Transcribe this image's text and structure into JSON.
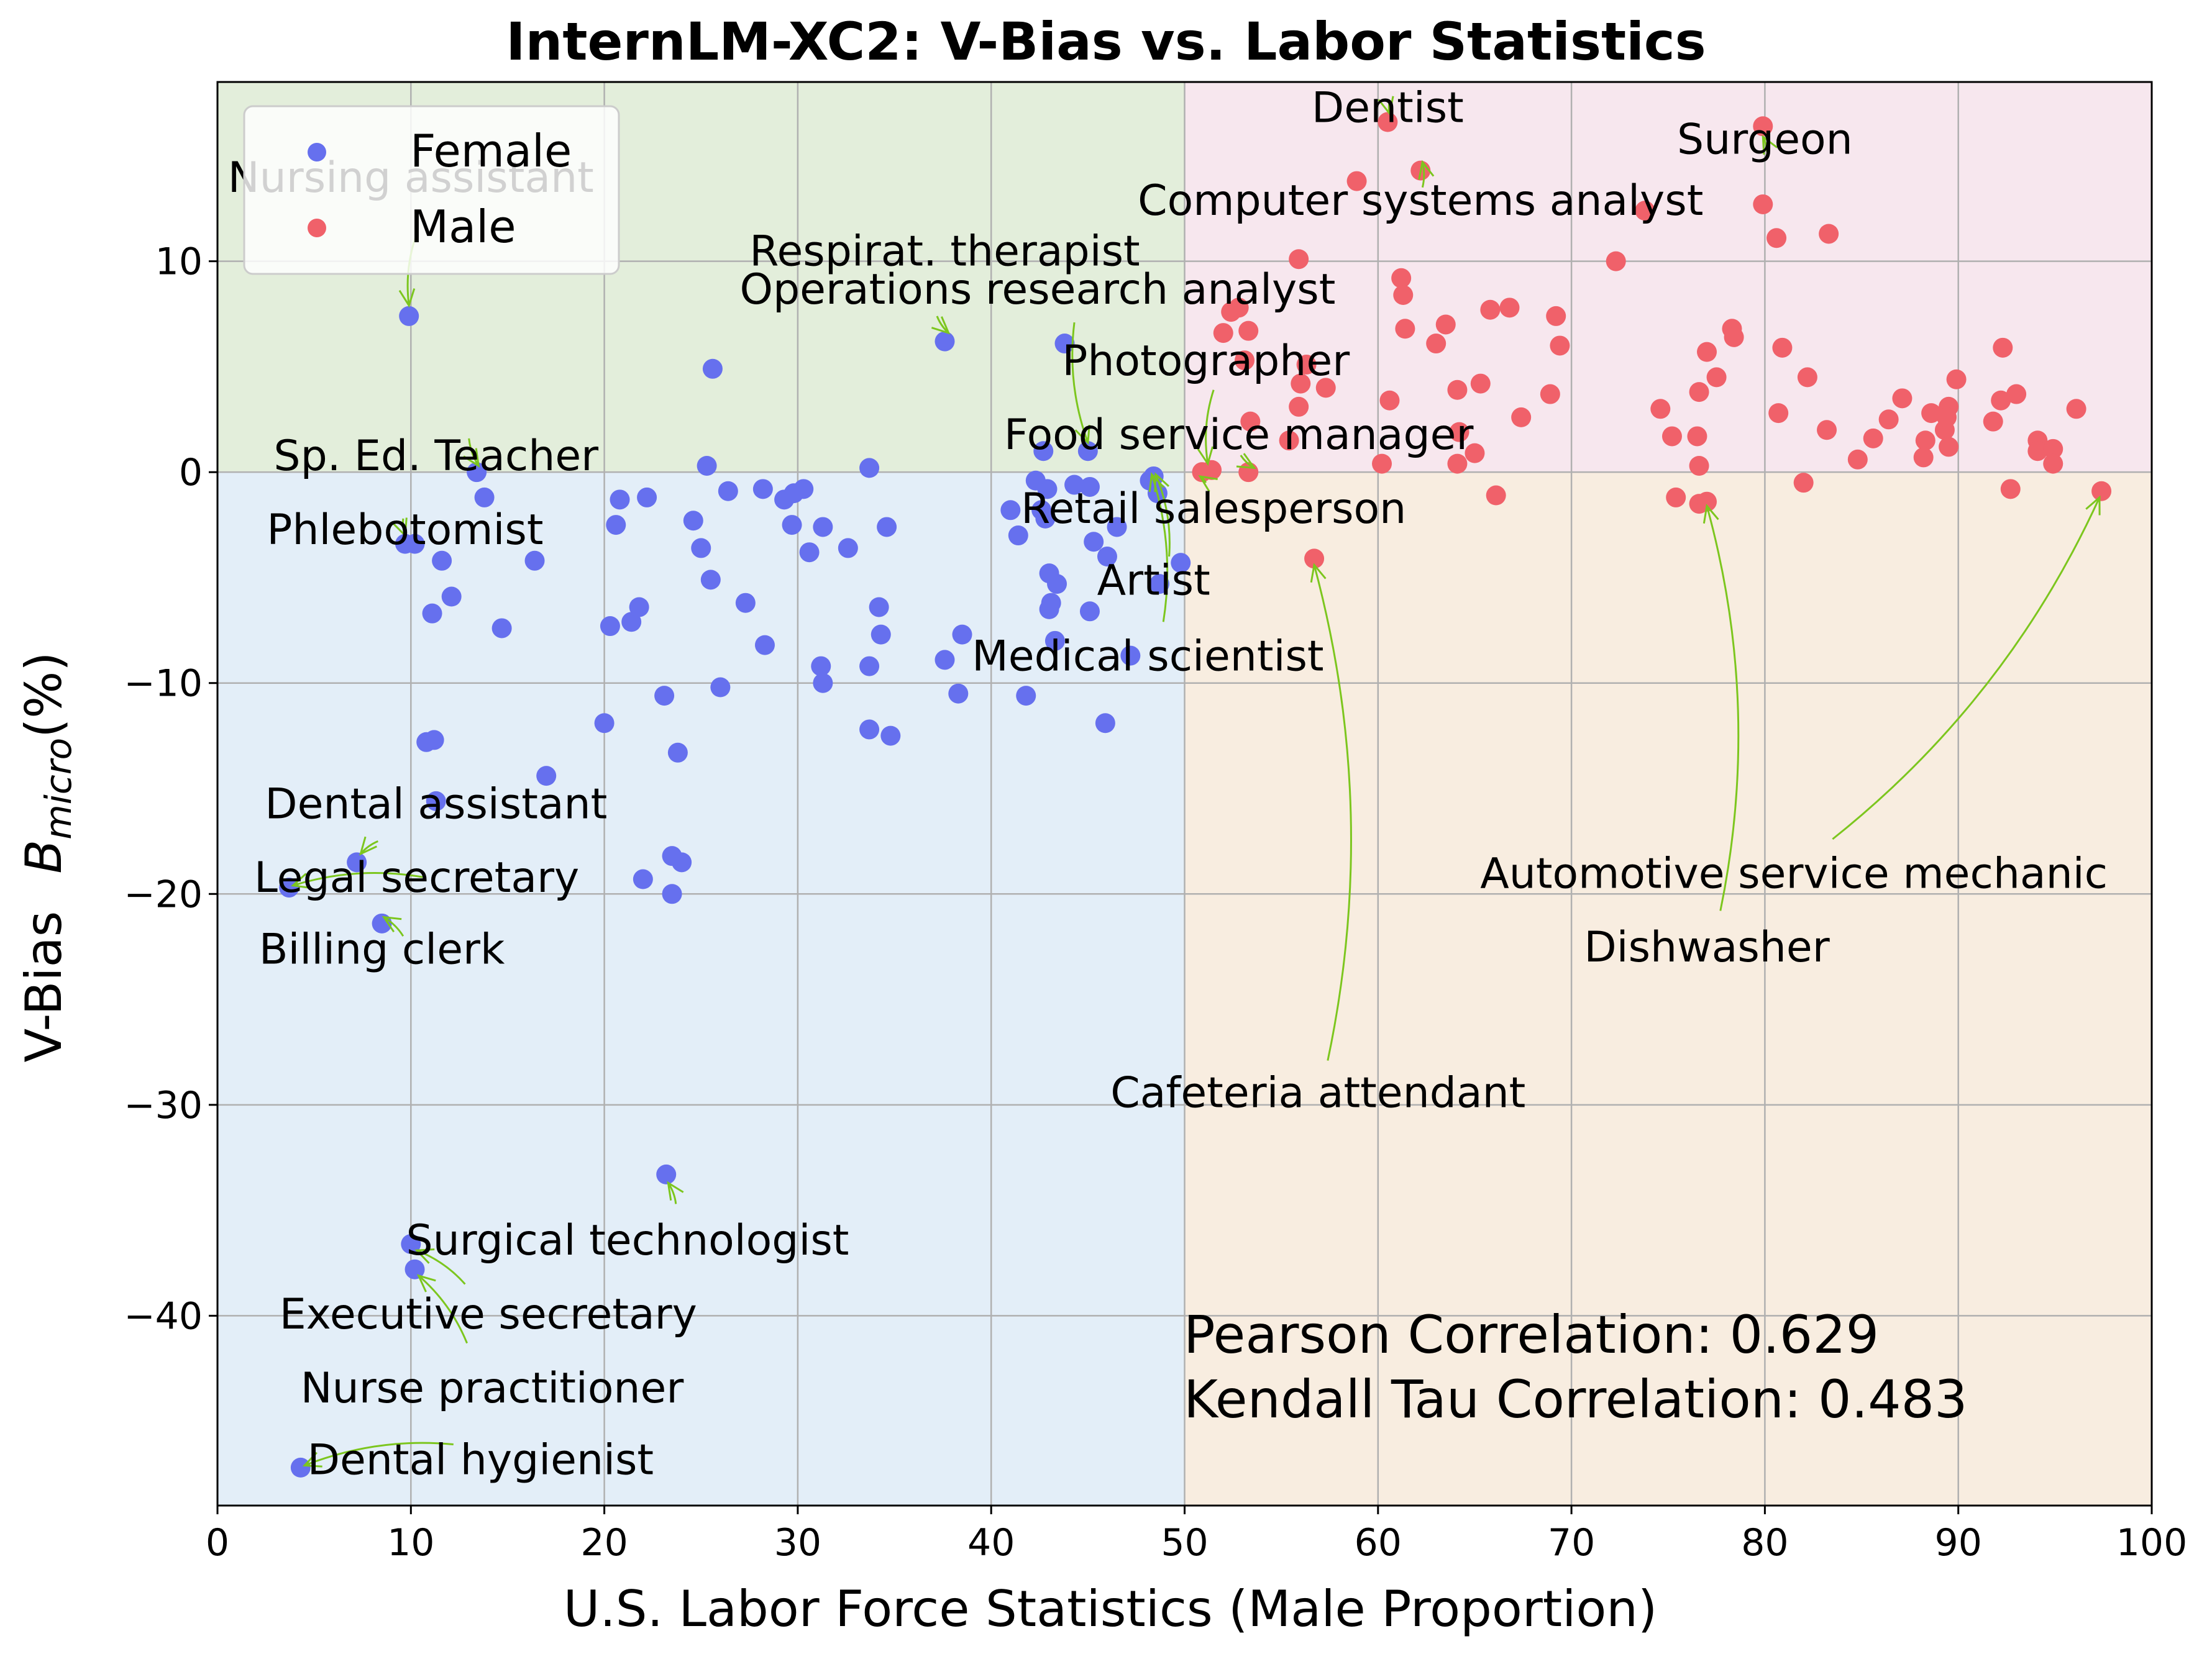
{
  "chart_data": {
    "type": "scatter",
    "title": "InternLM-XC2: V-Bias vs. Labor Statistics",
    "xlabel": "U.S. Labor Force Statistics (Male Proportion)",
    "ylabel": "V-Bias  B_micro(%)",
    "ylabel_main": "V-Bias",
    "ylabel_symbol": "B",
    "ylabel_subscript": "micro",
    "ylabel_unit": "(%)",
    "xlim": [
      0,
      100
    ],
    "ylim": [
      -49,
      18.5
    ],
    "xticks": [
      0,
      10,
      20,
      30,
      40,
      50,
      60,
      70,
      80,
      90,
      100
    ],
    "yticks": [
      -40,
      -30,
      -20,
      -10,
      0,
      10
    ],
    "ytick_labels": [
      "−40",
      "−30",
      "−20",
      "−10",
      "0",
      "10"
    ],
    "grid": true,
    "legend_position": "top-left",
    "region_colors": {
      "top_left": "#e3eedb",
      "top_right": "#f7e7ee",
      "bottom_left": "#e3eef8",
      "bottom_right": "#f8ede0"
    },
    "annotation_color": "#7cc61e",
    "series": [
      {
        "name": "Female",
        "color": "#6670ee",
        "points": [
          [
            9.9,
            7.4
          ],
          [
            25.6,
            4.9
          ],
          [
            37.6,
            6.2
          ],
          [
            43.8,
            6.1
          ],
          [
            13.4,
            0.0
          ],
          [
            13.8,
            -1.2
          ],
          [
            9.7,
            -3.4
          ],
          [
            10.2,
            -3.4
          ],
          [
            11.6,
            -4.2
          ],
          [
            11.1,
            -6.7
          ],
          [
            12.1,
            -5.9
          ],
          [
            14.7,
            -7.4
          ],
          [
            16.4,
            -4.2
          ],
          [
            20.6,
            -2.5
          ],
          [
            20.8,
            -1.3
          ],
          [
            22.2,
            -1.2
          ],
          [
            20.3,
            -7.3
          ],
          [
            21.4,
            -7.1
          ],
          [
            21.8,
            -6.4
          ],
          [
            25.3,
            0.3
          ],
          [
            24.6,
            -2.3
          ],
          [
            25.0,
            -3.6
          ],
          [
            25.5,
            -5.1
          ],
          [
            26.4,
            -0.9
          ],
          [
            27.3,
            -6.2
          ],
          [
            28.2,
            -0.8
          ],
          [
            28.3,
            -8.2
          ],
          [
            29.3,
            -1.3
          ],
          [
            29.8,
            -1.0
          ],
          [
            29.7,
            -2.5
          ],
          [
            30.3,
            -0.8
          ],
          [
            30.6,
            -3.8
          ],
          [
            31.3,
            -2.6
          ],
          [
            31.2,
            -9.2
          ],
          [
            31.3,
            -10.0
          ],
          [
            32.6,
            -3.6
          ],
          [
            33.7,
            0.2
          ],
          [
            34.2,
            -6.4
          ],
          [
            34.6,
            -2.6
          ],
          [
            34.3,
            -7.7
          ],
          [
            33.7,
            -9.2
          ],
          [
            33.7,
            -12.2
          ],
          [
            34.8,
            -12.5
          ],
          [
            23.1,
            -10.6
          ],
          [
            26.0,
            -10.2
          ],
          [
            20.0,
            -11.9
          ],
          [
            23.8,
            -13.3
          ],
          [
            10.8,
            -12.8
          ],
          [
            11.2,
            -12.7
          ],
          [
            11.3,
            -15.6
          ],
          [
            17.0,
            -14.4
          ],
          [
            22.0,
            -19.3
          ],
          [
            23.5,
            -18.2
          ],
          [
            24.0,
            -18.5
          ],
          [
            23.5,
            -20.0
          ],
          [
            7.2,
            -18.5
          ],
          [
            3.7,
            -19.7
          ],
          [
            8.5,
            -21.4
          ],
          [
            23.2,
            -33.3
          ],
          [
            10.0,
            -36.6
          ],
          [
            10.2,
            -37.8
          ],
          [
            4.3,
            -47.2
          ],
          [
            37.6,
            -8.9
          ],
          [
            38.3,
            -10.5
          ],
          [
            38.5,
            -7.7
          ],
          [
            41.4,
            -3.0
          ],
          [
            41.8,
            -10.6
          ],
          [
            41.0,
            -1.8
          ],
          [
            42.3,
            -0.4
          ],
          [
            42.7,
            1.0
          ],
          [
            42.9,
            -0.8
          ],
          [
            42.6,
            -1.8
          ],
          [
            42.8,
            -2.2
          ],
          [
            43.0,
            -4.8
          ],
          [
            43.4,
            -5.3
          ],
          [
            43.1,
            -6.2
          ],
          [
            43.0,
            -6.5
          ],
          [
            43.3,
            -8.0
          ],
          [
            44.3,
            -0.6
          ],
          [
            45.1,
            -0.7
          ],
          [
            45.0,
            1.0
          ],
          [
            45.3,
            -3.3
          ],
          [
            45.1,
            -6.6
          ],
          [
            46.0,
            -4.0
          ],
          [
            46.5,
            -2.6
          ],
          [
            45.9,
            -11.9
          ],
          [
            47.2,
            -8.7
          ],
          [
            48.2,
            -0.4
          ],
          [
            48.4,
            -0.2
          ],
          [
            48.6,
            -1.0
          ],
          [
            48.7,
            -5.3
          ],
          [
            49.8,
            -4.3
          ]
        ]
      },
      {
        "name": "Male",
        "color": "#f0616a",
        "points": [
          [
            60.5,
            16.6
          ],
          [
            62.2,
            14.3
          ],
          [
            58.9,
            13.8
          ],
          [
            73.8,
            12.4
          ],
          [
            55.9,
            10.1
          ],
          [
            72.3,
            10.0
          ],
          [
            79.9,
            16.4
          ],
          [
            79.9,
            12.7
          ],
          [
            80.6,
            11.1
          ],
          [
            83.3,
            11.3
          ],
          [
            61.2,
            9.2
          ],
          [
            61.3,
            8.4
          ],
          [
            61.4,
            6.8
          ],
          [
            63.0,
            6.1
          ],
          [
            63.5,
            7.0
          ],
          [
            65.8,
            7.7
          ],
          [
            66.8,
            7.8
          ],
          [
            69.2,
            7.4
          ],
          [
            69.4,
            6.0
          ],
          [
            68.9,
            3.7
          ],
          [
            65.3,
            4.2
          ],
          [
            64.1,
            3.9
          ],
          [
            64.2,
            1.9
          ],
          [
            64.1,
            0.4
          ],
          [
            65.0,
            0.9
          ],
          [
            66.1,
            -1.1
          ],
          [
            67.4,
            2.6
          ],
          [
            52.4,
            7.6
          ],
          [
            52.8,
            7.8
          ],
          [
            52.0,
            6.6
          ],
          [
            53.3,
            6.7
          ],
          [
            53.1,
            5.3
          ],
          [
            55.9,
            3.1
          ],
          [
            56.0,
            4.2
          ],
          [
            56.3,
            5.1
          ],
          [
            57.3,
            4.0
          ],
          [
            53.4,
            2.4
          ],
          [
            55.4,
            1.5
          ],
          [
            60.6,
            3.4
          ],
          [
            60.2,
            0.4
          ],
          [
            51.4,
            0.1
          ],
          [
            50.9,
            0.0
          ],
          [
            53.3,
            0.0
          ],
          [
            56.7,
            -4.1
          ],
          [
            77.0,
            5.7
          ],
          [
            77.5,
            4.5
          ],
          [
            76.6,
            3.8
          ],
          [
            78.3,
            6.8
          ],
          [
            78.4,
            6.4
          ],
          [
            80.9,
            5.9
          ],
          [
            82.2,
            4.5
          ],
          [
            80.7,
            2.8
          ],
          [
            74.6,
            3.0
          ],
          [
            75.2,
            1.7
          ],
          [
            76.5,
            1.7
          ],
          [
            76.6,
            0.3
          ],
          [
            75.4,
            -1.2
          ],
          [
            76.6,
            -1.5
          ],
          [
            77.0,
            -1.4
          ],
          [
            82.0,
            -0.5
          ],
          [
            83.2,
            2.0
          ],
          [
            84.8,
            0.6
          ],
          [
            85.6,
            1.6
          ],
          [
            86.4,
            2.5
          ],
          [
            87.1,
            3.5
          ],
          [
            88.2,
            0.7
          ],
          [
            88.3,
            1.5
          ],
          [
            88.6,
            2.8
          ],
          [
            89.3,
            2.0
          ],
          [
            89.5,
            3.1
          ],
          [
            89.4,
            2.6
          ],
          [
            89.5,
            1.2
          ],
          [
            89.9,
            4.4
          ],
          [
            91.8,
            2.4
          ],
          [
            92.2,
            3.4
          ],
          [
            92.3,
            5.9
          ],
          [
            92.7,
            -0.8
          ],
          [
            93.0,
            3.7
          ],
          [
            94.1,
            1.5
          ],
          [
            94.1,
            1.0
          ],
          [
            94.9,
            1.1
          ],
          [
            94.9,
            0.4
          ],
          [
            96.1,
            3.0
          ],
          [
            97.4,
            -0.9
          ]
        ]
      }
    ],
    "annotations": [
      {
        "text": "Nursing assistant",
        "x": 9.9,
        "y": 7.4,
        "tx": 10.0,
        "ty": 14.0
      },
      {
        "text": "Respirat. therapist",
        "x": 37.6,
        "y": 6.2,
        "tx": 37.6,
        "ty": 10.5
      },
      {
        "text": "Operations research analyst",
        "x": 44.3,
        "y": 1.5,
        "tx": 42.4,
        "ty": 8.7
      },
      {
        "text": "Dentist",
        "x": 60.5,
        "y": 16.6,
        "tx": 60.5,
        "ty": 17.3
      },
      {
        "text": "Surgeon",
        "x": 79.9,
        "y": 16.4,
        "tx": 80.0,
        "ty": 15.8
      },
      {
        "text": "Computer systems analyst",
        "x": 62.2,
        "y": 14.3,
        "tx": 62.2,
        "ty": 12.9
      },
      {
        "text": "Photographer",
        "x": 51.2,
        "y": 0.1,
        "tx": 51.1,
        "ty": 5.3
      },
      {
        "text": "Food service manager",
        "x": 53.6,
        "y": 0.0,
        "tx": 52.8,
        "ty": 1.8
      },
      {
        "text": "Sp. Ed. Teacher",
        "x": 13.4,
        "y": 0.0,
        "tx": 11.3,
        "ty": 0.8
      },
      {
        "text": "Retail salesperson",
        "x": 50.7,
        "y": 0.0,
        "tx": 51.5,
        "ty": -1.7
      },
      {
        "text": "Phlebotomist",
        "x": 9.7,
        "y": -3.4,
        "tx": 9.7,
        "ty": -2.7
      },
      {
        "text": "Artist",
        "x": 48.5,
        "y": -0.3,
        "tx": 48.4,
        "ty": -5.1
      },
      {
        "text": "Medical scientist",
        "x": 48.3,
        "y": -0.4,
        "tx": 48.1,
        "ty": -8.7
      },
      {
        "text": "Dental assistant",
        "x": 7.4,
        "y": -18.2,
        "tx": 11.3,
        "ty": -15.7
      },
      {
        "text": "Legal secretary",
        "x": 3.7,
        "y": -19.7,
        "tx": 10.3,
        "ty": -19.2
      },
      {
        "text": "Billing clerk",
        "x": 8.5,
        "y": -21.4,
        "tx": 8.5,
        "ty": -22.6
      },
      {
        "text": "Cafeteria attendant",
        "x": 56.7,
        "y": -4.1,
        "tx": 56.9,
        "ty": -29.4
      },
      {
        "text": "Dishwasher",
        "x": 76.8,
        "y": -1.5,
        "tx": 77.0,
        "ty": -22.5
      },
      {
        "text": "Automotive service mechanic",
        "x": 97.4,
        "y": -1.0,
        "tx": 81.5,
        "ty": -19.0
      },
      {
        "text": "Surgical technologist",
        "x": 10.2,
        "y": -36.8,
        "tx": 21.2,
        "ty": -36.4
      },
      {
        "text": "Executive secretary",
        "x": 10.4,
        "y": -38.0,
        "tx": 14.0,
        "ty": -39.9
      },
      {
        "text": "Nurse practitioner",
        "x": 23.2,
        "y": -33.6,
        "tx": 14.2,
        "ty": -43.4
      },
      {
        "text": "Dental hygienist",
        "x": 4.5,
        "y": -47.0,
        "tx": 13.6,
        "ty": -46.8
      }
    ],
    "annotation_arrows": [
      {
        "from": "Nursing assistant",
        "sx": 10.3,
        "sy": 11.3,
        "ex": 9.9,
        "ey": 7.9
      },
      {
        "from": "Respirat. therapist",
        "sx": 37.2,
        "sy": 7.4,
        "ex": 37.8,
        "ey": 6.6
      },
      {
        "from": "Operations research analyst",
        "sx": 44.3,
        "sy": 7.1,
        "ex": 45.0,
        "ey": 1.4
      },
      {
        "from": "Computer systems analyst",
        "sx": 62.3,
        "sy": 13.5,
        "ex": 62.3,
        "ey": 14.7
      },
      {
        "from": "Surgeon",
        "sx": 80.1,
        "sy": 15.2,
        "ex": 79.9,
        "ey": 15.9
      },
      {
        "from": "Dentist",
        "sx": 60.6,
        "sy": 17.6,
        "ex": 60.6,
        "ey": 17.0
      },
      {
        "from": "Photographer",
        "sx": 51.5,
        "sy": 3.9,
        "ex": 51.2,
        "ey": 0.4
      },
      {
        "from": "Food service manager",
        "sx": 52.9,
        "sy": 0.8,
        "ex": 53.6,
        "ey": 0.2
      },
      {
        "from": "Sp. Ed. Teacher",
        "sx": 13.0,
        "sy": 1.6,
        "ex": 13.5,
        "ey": 0.3
      },
      {
        "from": "Retail salesperson",
        "sx": 51.1,
        "sy": -0.5,
        "ex": 50.8,
        "ey": -0.2
      },
      {
        "from": "Phlebotomist",
        "sx": 9.6,
        "sy": -2.2,
        "ex": 9.7,
        "ey": -3.0
      },
      {
        "from": "Artist",
        "sx": 49.2,
        "sy": -4.0,
        "ex": 48.5,
        "ey": -0.1
      },
      {
        "from": "Medical scientist",
        "sx": 48.9,
        "sy": -7.1,
        "ex": 48.3,
        "ey": -0.1
      },
      {
        "from": "Dental assistant",
        "sx": 8.3,
        "sy": -17.5,
        "ex": 7.4,
        "ey": -18.1
      },
      {
        "from": "Legal secretary",
        "sx": 10.6,
        "sy": -19.2,
        "ex": 3.9,
        "ey": -19.6
      },
      {
        "from": "Billing clerk",
        "sx": 9.6,
        "sy": -22.0,
        "ex": 8.6,
        "ey": -21.1
      },
      {
        "from": "Cafeteria attendant",
        "sx": 57.4,
        "sy": -27.9,
        "ex": 56.7,
        "ey": -4.4
      },
      {
        "from": "Dishwasher",
        "sx": 77.7,
        "sy": -20.8,
        "ex": 77.0,
        "ey": -1.6
      },
      {
        "from": "Automotive service mechanic",
        "sx": 83.5,
        "sy": -17.4,
        "ex": 97.3,
        "ey": -1.2
      },
      {
        "from": "Surgical technologist",
        "sx": 12.8,
        "sy": -38.5,
        "ex": 10.3,
        "ey": -36.9
      },
      {
        "from": "Executive secretary",
        "sx": 12.9,
        "sy": -41.3,
        "ex": 10.4,
        "ey": -38.1
      },
      {
        "from": "Nurse practitioner",
        "sx": 23.7,
        "sy": -34.7,
        "ex": 23.3,
        "ey": -33.7
      },
      {
        "from": "Dental hygienist",
        "sx": 12.2,
        "sy": -46.1,
        "ex": 4.5,
        "ey": -47.1
      }
    ],
    "stats": {
      "pearson": "Pearson Correlation: 0.629",
      "kendall": "Kendall Tau Correlation: 0.483"
    }
  }
}
